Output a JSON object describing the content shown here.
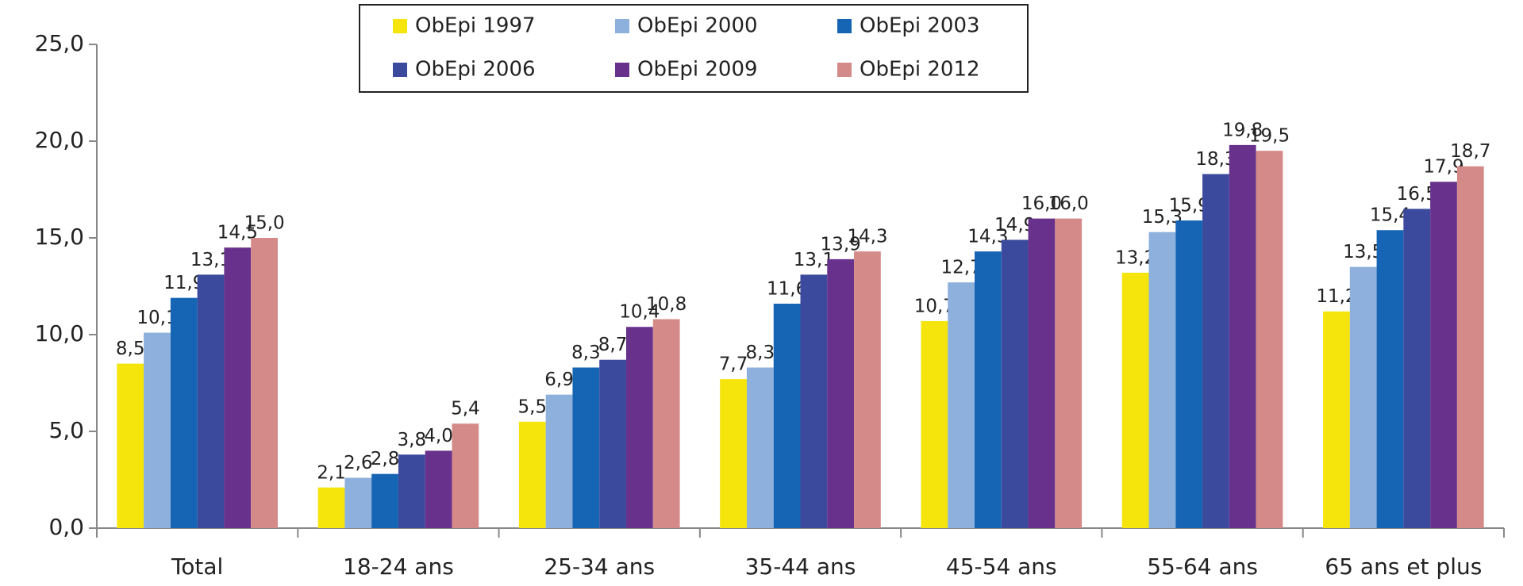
{
  "chart_data": {
    "type": "bar",
    "categories": [
      "Total",
      "18-24 ans",
      "25-34 ans",
      "35-44 ans",
      "45-54 ans",
      "55-64 ans",
      "65 ans et plus"
    ],
    "series": [
      {
        "name": "ObEpi 1997",
        "color": "#f5e50c",
        "values": [
          8.5,
          2.1,
          5.5,
          7.7,
          10.7,
          13.2,
          11.2
        ],
        "value_labels": [
          "8,5",
          "2,1",
          "5,5",
          "7,7",
          "10,7",
          "13,2",
          "11,2"
        ]
      },
      {
        "name": "ObEpi 2000",
        "color": "#8db0dd",
        "values": [
          10.1,
          2.6,
          6.9,
          8.3,
          12.7,
          15.3,
          13.5
        ],
        "value_labels": [
          "10,1",
          "2,6",
          "6,9",
          "8,3",
          "12,7",
          "15,3",
          "13,5"
        ]
      },
      {
        "name": "ObEpi 2003",
        "color": "#1565b4",
        "values": [
          11.9,
          2.8,
          8.3,
          11.6,
          14.3,
          15.9,
          15.4
        ],
        "value_labels": [
          "11,9",
          "2,8",
          "8,3",
          "11,6",
          "14,3",
          "15,9",
          "15,4"
        ]
      },
      {
        "name": "ObEpi 2006",
        "color": "#3b4a9c",
        "values": [
          13.1,
          3.8,
          8.7,
          13.1,
          14.9,
          18.3,
          16.5
        ],
        "value_labels": [
          "13,1",
          "3,8",
          "8,7",
          "13,1",
          "14,9",
          "18,3",
          "16,5"
        ]
      },
      {
        "name": "ObEpi 2009",
        "color": "#68318c",
        "values": [
          14.5,
          4.0,
          10.4,
          13.9,
          16.0,
          19.8,
          17.9
        ],
        "value_labels": [
          "14,5",
          "4,0",
          "10,4",
          "13,9",
          "16,0",
          "19,8",
          "17,9"
        ]
      },
      {
        "name": "ObEpi 2012",
        "color": "#d48a88",
        "values": [
          15.0,
          5.4,
          10.8,
          14.3,
          16.0,
          19.5,
          18.7
        ],
        "value_labels": [
          "15,0",
          "5,4",
          "10,8",
          "14,3",
          "16,0",
          "19,5",
          "18,7"
        ]
      }
    ],
    "ylim": [
      0,
      25
    ],
    "yticks": [
      {
        "value": 0,
        "label": "0,0"
      },
      {
        "value": 5,
        "label": "5,0"
      },
      {
        "value": 10,
        "label": "10,0"
      },
      {
        "value": 15,
        "label": "15,0"
      },
      {
        "value": 20,
        "label": "20,0"
      },
      {
        "value": 25,
        "label": "25,0"
      }
    ],
    "legend": "top"
  }
}
